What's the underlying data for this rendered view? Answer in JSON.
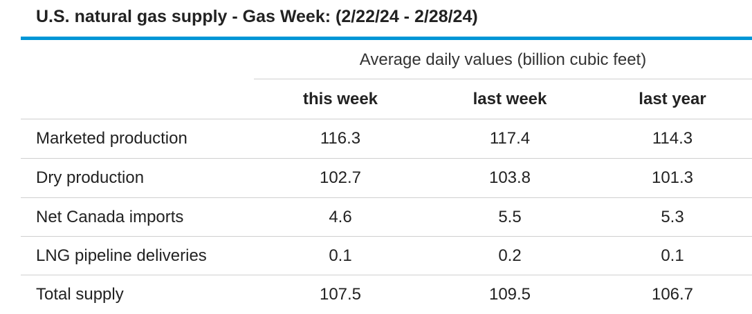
{
  "title": "U.S. natural gas supply - Gas Week: (2/22/24 - 2/28/24)",
  "table": {
    "group_header": "Average daily values (billion cubic feet)",
    "columns": [
      "this week",
      "last week",
      "last year"
    ],
    "rows": [
      {
        "label": "Marketed production",
        "values": [
          "116.3",
          "117.4",
          "114.3"
        ]
      },
      {
        "label": "Dry production",
        "values": [
          "102.7",
          "103.8",
          "101.3"
        ]
      },
      {
        "label": "Net Canada imports",
        "values": [
          "4.6",
          "5.5",
          "5.3"
        ]
      },
      {
        "label": "LNG pipeline deliveries",
        "values": [
          "0.1",
          "0.2",
          "0.1"
        ]
      },
      {
        "label": "Total supply",
        "values": [
          "107.5",
          "109.5",
          "106.7"
        ]
      }
    ]
  },
  "colors": {
    "accent_rule": "#0096d6",
    "gridline": "#cfcfcf",
    "text": "#222222"
  }
}
